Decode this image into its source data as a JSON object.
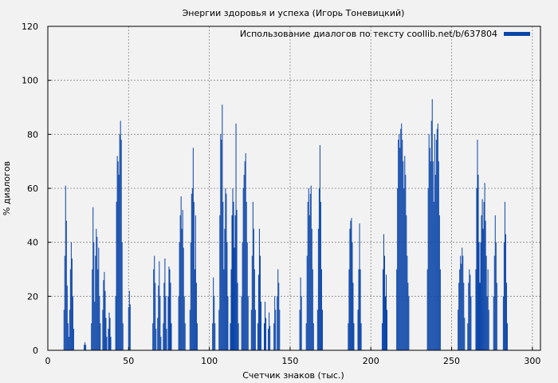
{
  "chart_data": {
    "type": "bar",
    "title": "Энергии здоровья и успеха (Игорь Тоневицкий)",
    "xlabel": "Счетчик знаков (тыс.)",
    "ylabel": "% диалогов",
    "xlim": [
      0,
      305
    ],
    "ylim": [
      0,
      120
    ],
    "xticks": [
      0,
      50,
      100,
      150,
      200,
      250,
      300
    ],
    "yticks": [
      0,
      20,
      40,
      60,
      80,
      100,
      120
    ],
    "grid": true,
    "legend_position": "top-right",
    "series": [
      {
        "name": "Использование диалогов по тексту coollib.net/b/637804",
        "color": "#0b45a8",
        "peaks": [
          [
            10,
            15
          ],
          [
            10.5,
            35
          ],
          [
            11,
            61
          ],
          [
            11.5,
            48
          ],
          [
            12,
            24
          ],
          [
            12.5,
            10
          ],
          [
            13,
            5
          ],
          [
            13.5,
            15
          ],
          [
            14,
            30
          ],
          [
            14.5,
            40
          ],
          [
            15,
            34
          ],
          [
            15.5,
            20
          ],
          [
            16,
            8
          ],
          [
            22.5,
            2
          ],
          [
            23,
            3
          ],
          [
            23.5,
            2
          ],
          [
            27,
            10
          ],
          [
            27.5,
            30
          ],
          [
            28,
            53
          ],
          [
            28.5,
            40
          ],
          [
            29,
            18
          ],
          [
            29.5,
            35
          ],
          [
            30,
            45
          ],
          [
            30.5,
            42
          ],
          [
            31,
            30
          ],
          [
            31.5,
            38
          ],
          [
            32,
            20
          ],
          [
            32.5,
            10
          ],
          [
            34,
            15
          ],
          [
            34.5,
            26
          ],
          [
            35,
            29
          ],
          [
            35.5,
            22
          ],
          [
            36,
            12
          ],
          [
            36.5,
            5
          ],
          [
            37.5,
            8
          ],
          [
            38,
            14
          ],
          [
            38.5,
            12
          ],
          [
            39,
            5
          ],
          [
            42,
            20
          ],
          [
            42.5,
            55
          ],
          [
            43,
            72
          ],
          [
            43.5,
            70
          ],
          [
            44,
            65
          ],
          [
            44.5,
            80
          ],
          [
            45,
            85
          ],
          [
            45.5,
            78
          ],
          [
            46,
            40
          ],
          [
            46.5,
            10
          ],
          [
            50,
            16
          ],
          [
            50.5,
            22
          ],
          [
            51,
            17
          ],
          [
            65,
            10
          ],
          [
            65.5,
            30
          ],
          [
            66,
            35
          ],
          [
            66.5,
            25
          ],
          [
            67,
            8
          ],
          [
            68,
            12
          ],
          [
            68.5,
            24
          ],
          [
            69,
            33
          ],
          [
            69.5,
            20
          ],
          [
            70,
            5
          ],
          [
            71.5,
            10
          ],
          [
            72,
            25
          ],
          [
            72.5,
            34
          ],
          [
            73,
            20
          ],
          [
            73.5,
            8
          ],
          [
            74.5,
            20
          ],
          [
            75,
            31
          ],
          [
            75.5,
            30
          ],
          [
            76,
            25
          ],
          [
            76.5,
            10
          ],
          [
            81,
            20
          ],
          [
            81.5,
            40
          ],
          [
            82,
            50
          ],
          [
            82.5,
            57
          ],
          [
            83,
            45
          ],
          [
            83.5,
            52
          ],
          [
            84,
            38
          ],
          [
            84.5,
            20
          ],
          [
            85,
            10
          ],
          [
            88,
            15
          ],
          [
            88.5,
            40
          ],
          [
            89,
            58
          ],
          [
            89.5,
            60
          ],
          [
            90,
            75
          ],
          [
            90.5,
            55
          ],
          [
            91,
            30
          ],
          [
            91.5,
            50
          ],
          [
            92,
            25
          ],
          [
            92.5,
            10
          ],
          [
            102,
            10
          ],
          [
            102.5,
            27
          ],
          [
            103,
            20
          ],
          [
            103.5,
            10
          ],
          [
            106,
            15
          ],
          [
            106.5,
            50
          ],
          [
            107,
            80
          ],
          [
            107.5,
            78
          ],
          [
            108,
            91
          ],
          [
            108.5,
            55
          ],
          [
            109,
            30
          ],
          [
            109.5,
            45
          ],
          [
            110,
            60
          ],
          [
            110.5,
            58
          ],
          [
            111,
            40
          ],
          [
            111.5,
            20
          ],
          [
            113,
            10
          ],
          [
            113.5,
            30
          ],
          [
            114,
            50
          ],
          [
            114.5,
            60
          ],
          [
            115,
            55
          ],
          [
            115.5,
            38
          ],
          [
            116,
            50
          ],
          [
            116.5,
            84
          ],
          [
            117,
            52
          ],
          [
            117.5,
            25
          ],
          [
            118,
            10
          ],
          [
            120,
            20
          ],
          [
            120.5,
            40
          ],
          [
            121,
            60
          ],
          [
            121.5,
            65
          ],
          [
            122,
            70
          ],
          [
            122.5,
            73
          ],
          [
            123,
            55
          ],
          [
            123.5,
            40
          ],
          [
            124,
            20
          ],
          [
            126,
            15
          ],
          [
            126.5,
            35
          ],
          [
            127,
            55
          ],
          [
            127.5,
            45
          ],
          [
            128,
            30
          ],
          [
            128.5,
            15
          ],
          [
            130,
            10
          ],
          [
            130.5,
            28
          ],
          [
            131,
            45
          ],
          [
            131.5,
            35
          ],
          [
            132,
            18
          ],
          [
            134,
            10
          ],
          [
            134.5,
            18
          ],
          [
            135,
            12
          ],
          [
            136.5,
            8
          ],
          [
            137,
            14
          ],
          [
            137.5,
            9
          ],
          [
            140,
            10
          ],
          [
            140.5,
            20
          ],
          [
            141,
            15
          ],
          [
            142,
            20
          ],
          [
            142.5,
            30
          ],
          [
            143,
            25
          ],
          [
            143.5,
            15
          ],
          [
            156,
            15
          ],
          [
            156.5,
            27
          ],
          [
            157,
            20
          ],
          [
            160,
            10
          ],
          [
            160.5,
            35
          ],
          [
            161,
            55
          ],
          [
            161.5,
            60
          ],
          [
            162,
            50
          ],
          [
            162.5,
            58
          ],
          [
            163,
            61
          ],
          [
            163.5,
            45
          ],
          [
            164,
            30
          ],
          [
            164.5,
            10
          ],
          [
            167,
            15
          ],
          [
            167.5,
            45
          ],
          [
            168,
            60
          ],
          [
            168.5,
            76
          ],
          [
            169,
            55
          ],
          [
            169.5,
            30
          ],
          [
            170,
            15
          ],
          [
            186,
            10
          ],
          [
            186.5,
            30
          ],
          [
            187,
            45
          ],
          [
            187.5,
            48
          ],
          [
            188,
            49
          ],
          [
            188.5,
            40
          ],
          [
            189,
            25
          ],
          [
            189.5,
            10
          ],
          [
            192,
            15
          ],
          [
            192.5,
            30
          ],
          [
            193,
            47
          ],
          [
            193.5,
            30
          ],
          [
            194,
            10
          ],
          [
            207,
            10
          ],
          [
            207.5,
            30
          ],
          [
            208,
            43
          ],
          [
            208.5,
            35
          ],
          [
            209,
            20
          ],
          [
            209.5,
            28
          ],
          [
            210,
            15
          ],
          [
            216,
            30
          ],
          [
            216.5,
            60
          ],
          [
            217,
            78
          ],
          [
            217.5,
            80
          ],
          [
            218,
            75
          ],
          [
            218.5,
            82
          ],
          [
            219,
            84
          ],
          [
            219.5,
            78
          ],
          [
            220,
            70
          ],
          [
            220.5,
            60
          ],
          [
            221,
            72
          ],
          [
            221.5,
            65
          ],
          [
            222,
            50
          ],
          [
            222.5,
            35
          ],
          [
            223,
            25
          ],
          [
            223.5,
            20
          ],
          [
            235,
            30
          ],
          [
            235.5,
            60
          ],
          [
            236,
            80
          ],
          [
            236.5,
            75
          ],
          [
            237,
            70
          ],
          [
            237.5,
            85
          ],
          [
            238,
            93
          ],
          [
            238.5,
            70
          ],
          [
            239,
            55
          ],
          [
            239.5,
            80
          ],
          [
            240,
            65
          ],
          [
            240.5,
            78
          ],
          [
            241,
            82
          ],
          [
            241.5,
            84
          ],
          [
            242,
            70
          ],
          [
            242.5,
            50
          ],
          [
            243,
            30
          ],
          [
            254,
            15
          ],
          [
            254.5,
            25
          ],
          [
            255,
            30
          ],
          [
            255.5,
            35
          ],
          [
            256,
            32
          ],
          [
            256.5,
            38
          ],
          [
            257,
            35
          ],
          [
            257.5,
            25
          ],
          [
            258,
            12
          ],
          [
            260,
            10
          ],
          [
            260.5,
            25
          ],
          [
            261,
            30
          ],
          [
            261.5,
            28
          ],
          [
            262,
            20
          ],
          [
            265,
            30
          ],
          [
            265.5,
            60
          ],
          [
            266,
            78
          ],
          [
            266.5,
            65
          ],
          [
            267,
            40
          ],
          [
            267.5,
            25
          ],
          [
            268,
            40
          ],
          [
            268.5,
            50
          ],
          [
            269,
            56
          ],
          [
            269.5,
            45
          ],
          [
            270,
            55
          ],
          [
            270.5,
            62
          ],
          [
            271,
            48
          ],
          [
            271.5,
            35
          ],
          [
            272,
            20
          ],
          [
            272.5,
            30
          ],
          [
            273,
            15
          ],
          [
            276,
            20
          ],
          [
            276.5,
            35
          ],
          [
            277,
            50
          ],
          [
            277.5,
            40
          ],
          [
            278,
            25
          ],
          [
            282,
            20
          ],
          [
            282.5,
            40
          ],
          [
            283,
            55
          ],
          [
            283.5,
            43
          ],
          [
            284,
            25
          ],
          [
            284.5,
            10
          ]
        ]
      }
    ]
  }
}
